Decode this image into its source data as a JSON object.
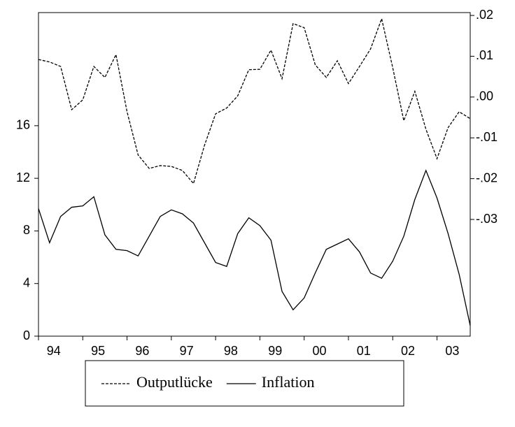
{
  "chart_data": {
    "type": "line",
    "categories": [
      null,
      "94",
      null,
      null,
      null,
      "95",
      null,
      null,
      null,
      "96",
      null,
      null,
      null,
      "97",
      null,
      null,
      null,
      "98",
      null,
      null,
      null,
      "99",
      null,
      null,
      null,
      "00",
      null,
      null,
      null,
      "01",
      null,
      null,
      null,
      "02",
      null,
      null,
      null,
      "03",
      null,
      null
    ],
    "series": [
      {
        "name": "Outputlücke",
        "color": "#000000",
        "style": "dashed",
        "axis": "y2",
        "values": [
          0.0092,
          0.0086,
          0.0075,
          -0.0031,
          -0.0007,
          0.0075,
          0.0048,
          0.0104,
          -0.0036,
          -0.0142,
          -0.0175,
          -0.0168,
          -0.017,
          -0.018,
          -0.0212,
          -0.0118,
          -0.0041,
          -0.0027,
          0.0003,
          0.0067,
          0.0068,
          0.0115,
          0.0045,
          0.018,
          0.017,
          0.0079,
          0.0048,
          0.0089,
          0.0033,
          0.0075,
          0.0118,
          0.0192,
          0.0072,
          -0.0058,
          0.0014,
          -0.0079,
          -0.0151,
          -0.0075,
          -0.0036,
          -0.0053
        ]
      },
      {
        "name": "Inflation",
        "color": "#000000",
        "style": "solid",
        "values": [
          9.7,
          7.1,
          9.1,
          9.8,
          9.9,
          10.6,
          7.7,
          6.6,
          6.5,
          6.1,
          7.6,
          9.1,
          9.6,
          9.3,
          8.6,
          7.1,
          5.6,
          5.3,
          7.8,
          9.0,
          8.4,
          7.3,
          3.4,
          2.0,
          2.9,
          4.8,
          6.6,
          7.0,
          7.4,
          6.4,
          4.8,
          4.4,
          5.7,
          7.6,
          10.4,
          12.6,
          10.5,
          7.8,
          4.7,
          0.8
        ]
      }
    ],
    "ylim": [
      0,
      24.6
    ],
    "yticks": [
      0,
      4,
      8,
      12,
      16
    ],
    "y2lim": [
      -0.0586,
      0.0207
    ],
    "y2ticks": [
      {
        "value": 0.02,
        "label": ".02"
      },
      {
        "value": 0.01,
        "label": ".01"
      },
      {
        "value": 0,
        "label": ".00"
      },
      {
        "value": -0.01,
        "label": "-.01"
      },
      {
        "value": -0.02,
        "label": "-.02"
      },
      {
        "value": -0.03,
        "label": "-.03"
      }
    ],
    "legend": "bottom"
  }
}
